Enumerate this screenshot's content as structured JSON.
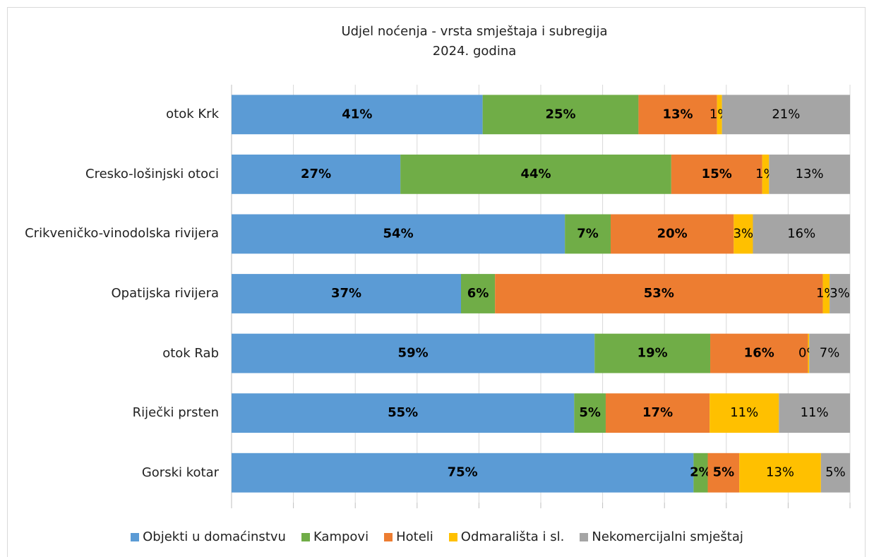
{
  "chart_data": {
    "type": "stacked_barh",
    "title": "Udjel noćenja - vrsta smještaja i subregija",
    "subtitle": "2024. godina",
    "categories": [
      "otok Krk",
      "Cresko-lošinjski otoci",
      "Crikveničko-vinodolska rivijera",
      "Opatijska rivijera",
      "otok Rab",
      "Riječki prsten",
      "Gorski kotar"
    ],
    "xlim": [
      0,
      100
    ],
    "xticks": [
      0,
      10,
      20,
      30,
      40,
      50,
      60,
      70,
      80,
      90,
      100
    ],
    "grid": true,
    "legend": "bottom",
    "series": [
      {
        "name": "Objekti u domaćinstvu",
        "color": "#5b9bd5",
        "values": [
          40.6,
          27.3,
          53.9,
          37.1,
          58.7,
          55.4,
          74.7
        ],
        "value_labels": [
          "41%",
          "27%",
          "54%",
          "37%",
          "59%",
          "55%",
          "75%"
        ]
      },
      {
        "name": "Kampovi",
        "color": "#70ad47",
        "values": [
          25.2,
          43.8,
          7.4,
          5.5,
          18.7,
          5.1,
          2.3
        ],
        "value_labels": [
          "25%",
          "44%",
          "7%",
          "6%",
          "19%",
          "5%",
          "2%"
        ]
      },
      {
        "name": "Hoteli",
        "color": "#ed7d31",
        "values": [
          12.7,
          14.7,
          19.9,
          53.0,
          15.8,
          16.8,
          5.1
        ],
        "value_labels": [
          "13%",
          "15%",
          "20%",
          "53%",
          "16%",
          "17%",
          "5%"
        ]
      },
      {
        "name": "Odmarališta i sl.",
        "color": "#ffc000",
        "values": [
          0.8,
          1.1,
          3.1,
          1.1,
          0.2,
          11.2,
          13.2
        ],
        "value_labels": [
          "1%",
          "1%",
          "3%",
          "1%",
          "0%",
          "11%",
          "13%"
        ]
      },
      {
        "name": "Nekomercijalni smještaj",
        "color": "#a5a5a5",
        "values": [
          20.7,
          13.1,
          15.7,
          3.3,
          6.6,
          11.5,
          4.7
        ],
        "value_labels": [
          "21%",
          "13%",
          "16%",
          "3%",
          "7%",
          "11%",
          "5%"
        ]
      }
    ]
  }
}
